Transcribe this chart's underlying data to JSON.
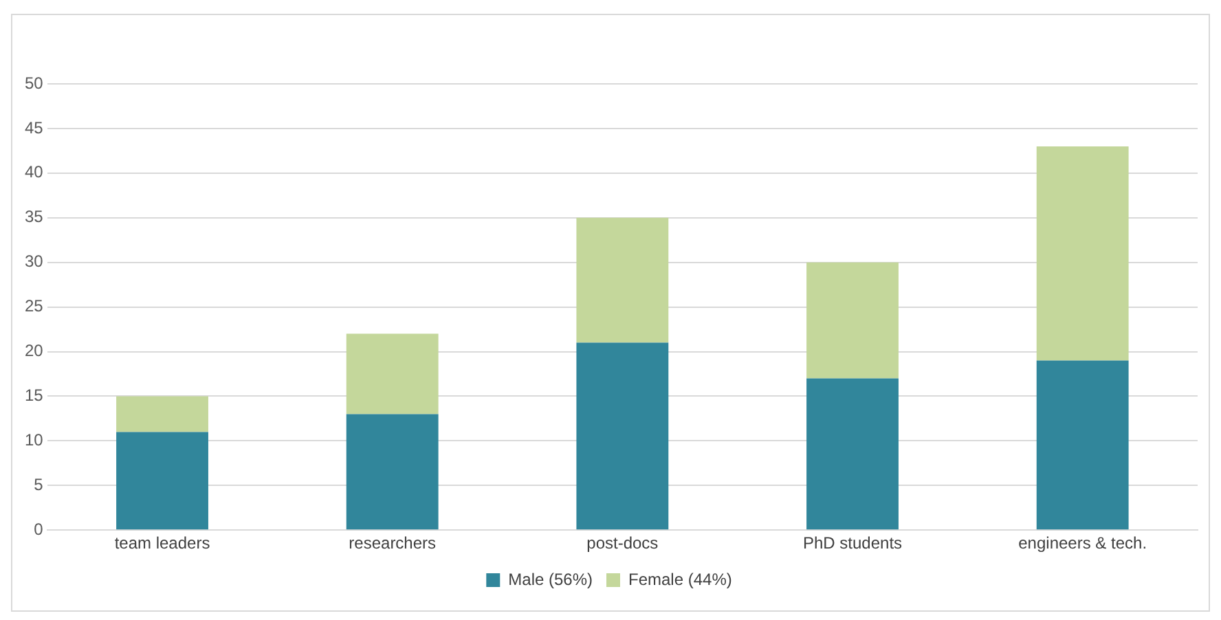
{
  "chart_data": {
    "type": "bar",
    "stacked": true,
    "categories": [
      "team leaders",
      "researchers",
      "post-docs",
      "PhD students",
      "engineers & tech."
    ],
    "series": [
      {
        "name": "Male (56%)",
        "color": "#31869b",
        "values": [
          11,
          13,
          21,
          17,
          19
        ]
      },
      {
        "name": "Female (44%)",
        "color": "#c4d79b",
        "values": [
          4,
          9,
          14,
          13,
          24
        ]
      }
    ],
    "ylim": [
      0,
      50
    ],
    "yticks": [
      0,
      5,
      10,
      15,
      20,
      25,
      30,
      35,
      40,
      45,
      50
    ],
    "grid": "y",
    "legend": "bottom"
  }
}
